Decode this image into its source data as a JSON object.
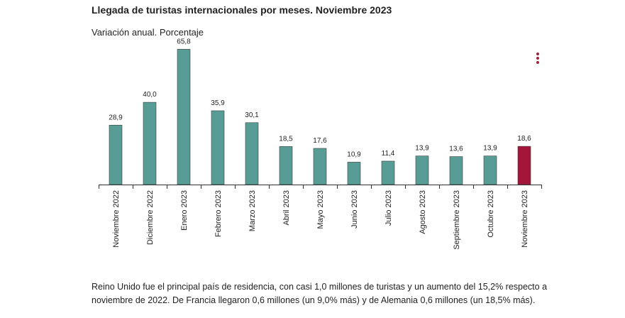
{
  "chart_data": {
    "type": "bar",
    "title": "Llegada de turistas internacionales por meses. Noviembre 2023",
    "subtitle": "Variación anual. Porcentaje",
    "categories": [
      "Noviembre 2022",
      "Diciembre 2022",
      "Enero 2023",
      "Febrero 2023",
      "Marzo 2023",
      "Abril 2023",
      "Mayo 2023",
      "Junio 2023",
      "Julio 2023",
      "Agosto 2023",
      "Septiembre 2023",
      "Octubre 2023",
      "Noviembre 2023"
    ],
    "values": [
      28.9,
      40.0,
      65.8,
      35.9,
      30.1,
      18.5,
      17.6,
      10.9,
      11.4,
      13.9,
      13.6,
      13.9,
      18.6
    ],
    "labels": [
      "28,9",
      "40,0",
      "65,8",
      "35,9",
      "30,1",
      "18,5",
      "17,6",
      "10,9",
      "11,4",
      "13,9",
      "13,6",
      "13,9",
      "18,6"
    ],
    "highlight_index": 12,
    "colors": {
      "default": "#579d96",
      "highlight": "#a3163a"
    },
    "ylim": [
      0,
      68
    ],
    "xlabel": "",
    "ylabel": ""
  },
  "note": "Reino Unido fue el principal país de residencia, con casi 1,0 millones de turistas y un aumento del 15,2% respecto a noviembre de 2022. De Francia llegaron 0,6 millones (un 9,0% más) y de Alemania 0,6 millones (un 18,5% más).",
  "menu_icon": "more-vertical-icon"
}
